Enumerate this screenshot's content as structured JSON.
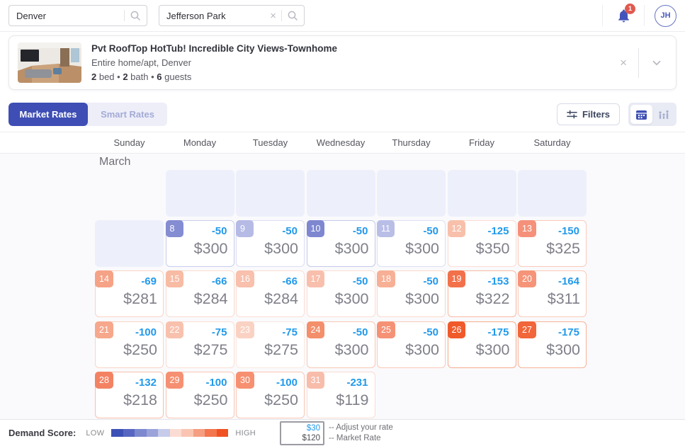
{
  "header": {
    "city_search": {
      "value": "Denver"
    },
    "location_search": {
      "value": "Jefferson Park"
    },
    "notification_count": "1",
    "avatar_initials": "JH"
  },
  "listing_card": {
    "title": "Pvt RoofTop HotTub! Incredible City Views-Townhome",
    "subtitle": "Entire home/apt, Denver",
    "stats": [
      {
        "value": "2",
        "label": "bed"
      },
      {
        "value": "2",
        "label": "bath"
      },
      {
        "value": "6",
        "label": "guests"
      }
    ],
    "stats_separator": " • "
  },
  "toolbar": {
    "tabs": [
      {
        "label": "Market Rates",
        "active": true
      },
      {
        "label": "Smart Rates",
        "active": false
      }
    ],
    "filters_label": "Filters"
  },
  "colors": {
    "accent": "#3e4eb4",
    "adjustment_blue": "#2299ea",
    "price_gray": "#7f8089",
    "notification_red": "#e05a4f"
  },
  "calendar": {
    "month_label": "March",
    "day_headers": [
      "Sunday",
      "Monday",
      "Tuesday",
      "Wednesday",
      "Thursday",
      "Friday",
      "Saturday"
    ],
    "weeks": [
      [
        null,
        {
          "type": "empty"
        },
        {
          "type": "empty"
        },
        {
          "type": "empty"
        },
        {
          "type": "empty"
        },
        {
          "type": "empty"
        },
        {
          "type": "empty"
        }
      ],
      [
        {
          "type": "empty"
        },
        {
          "type": "day",
          "day": "8",
          "adjustment": "-50",
          "price": "$300",
          "badge_color": "#848cd2",
          "border_color": "#c9cdeb"
        },
        {
          "type": "day",
          "day": "9",
          "adjustment": "-50",
          "price": "$300",
          "badge_color": "#b5bbe5",
          "border_color": "#dcdef3"
        },
        {
          "type": "day",
          "day": "10",
          "adjustment": "-50",
          "price": "$300",
          "badge_color": "#7e87d0",
          "border_color": "#c5cae9"
        },
        {
          "type": "day",
          "day": "11",
          "adjustment": "-50",
          "price": "$300",
          "badge_color": "#b9bee7",
          "border_color": "#dedff4"
        },
        {
          "type": "day",
          "day": "12",
          "adjustment": "-125",
          "price": "$350",
          "badge_color": "#f8c0ab",
          "border_color": "#fbddd2"
        },
        {
          "type": "day",
          "day": "13",
          "adjustment": "-150",
          "price": "$325",
          "badge_color": "#f5917a",
          "border_color": "#fac9ba"
        }
      ],
      [
        {
          "type": "day",
          "day": "14",
          "adjustment": "-69",
          "price": "$281",
          "badge_color": "#f5a286",
          "border_color": "#fad3c4"
        },
        {
          "type": "day",
          "day": "15",
          "adjustment": "-66",
          "price": "$284",
          "badge_color": "#f8bba4",
          "border_color": "#fbdbce"
        },
        {
          "type": "day",
          "day": "16",
          "adjustment": "-66",
          "price": "$284",
          "badge_color": "#f8c0ad",
          "border_color": "#fbddd2"
        },
        {
          "type": "day",
          "day": "17",
          "adjustment": "-50",
          "price": "$300",
          "badge_color": "#f8bfac",
          "border_color": "#fbddd1"
        },
        {
          "type": "day",
          "day": "18",
          "adjustment": "-50",
          "price": "$300",
          "badge_color": "#f7b096",
          "border_color": "#fad8c9"
        },
        {
          "type": "day",
          "day": "19",
          "adjustment": "-153",
          "price": "$322",
          "badge_color": "#f2714b",
          "border_color": "#f9b8a1"
        },
        {
          "type": "day",
          "day": "20",
          "adjustment": "-164",
          "price": "$311",
          "badge_color": "#f59479",
          "border_color": "#facab9"
        }
      ],
      [
        {
          "type": "day",
          "day": "21",
          "adjustment": "-100",
          "price": "$250",
          "badge_color": "#f6a78c",
          "border_color": "#fad4c6"
        },
        {
          "type": "day",
          "day": "22",
          "adjustment": "-75",
          "price": "$275",
          "badge_color": "#f8c1ae",
          "border_color": "#fbded3"
        },
        {
          "type": "day",
          "day": "23",
          "adjustment": "-75",
          "price": "$275",
          "badge_color": "#fad2c3",
          "border_color": "#fce8e1"
        },
        {
          "type": "day",
          "day": "24",
          "adjustment": "-50",
          "price": "$300",
          "badge_color": "#f48f6b",
          "border_color": "#f9c7b3"
        },
        {
          "type": "day",
          "day": "25",
          "adjustment": "-50",
          "price": "$300",
          "badge_color": "#f59276",
          "border_color": "#f9c9b8"
        },
        {
          "type": "day",
          "day": "26",
          "adjustment": "-175",
          "price": "$300",
          "badge_color": "#f05a2b",
          "border_color": "#f7ab8d"
        },
        {
          "type": "day",
          "day": "27",
          "adjustment": "-175",
          "price": "$300",
          "badge_color": "#f1663a",
          "border_color": "#f8b297"
        }
      ],
      [
        {
          "type": "day",
          "day": "28",
          "adjustment": "-132",
          "price": "$218",
          "badge_color": "#f38263",
          "border_color": "#f8c0ab"
        },
        {
          "type": "day",
          "day": "29",
          "adjustment": "-100",
          "price": "$250",
          "badge_color": "#f69072",
          "border_color": "#f9c7b5"
        },
        {
          "type": "day",
          "day": "30",
          "adjustment": "-100",
          "price": "$250",
          "badge_color": "#f69071",
          "border_color": "#f9c7b4"
        },
        {
          "type": "day",
          "day": "31",
          "adjustment": "-231",
          "price": "$119",
          "badge_color": "#f8bcab",
          "border_color": "#fbdbd1"
        },
        null,
        null,
        null
      ]
    ]
  },
  "footer": {
    "demand_label": "Demand Score:",
    "low_label": "LOW",
    "high_label": "HIGH",
    "scale_colors": [
      "#3d50b5",
      "#5767c1",
      "#7d89cf",
      "#9aa3da",
      "#c6cbea",
      "#fbdcd3",
      "#f9c5b2",
      "#f69e81",
      "#f3764f",
      "#f05122"
    ],
    "sample": {
      "adjust_value": "$30",
      "market_value": "$120"
    },
    "adjust_caption": "-- Adjust your rate",
    "market_caption": "-- Market Rate"
  }
}
